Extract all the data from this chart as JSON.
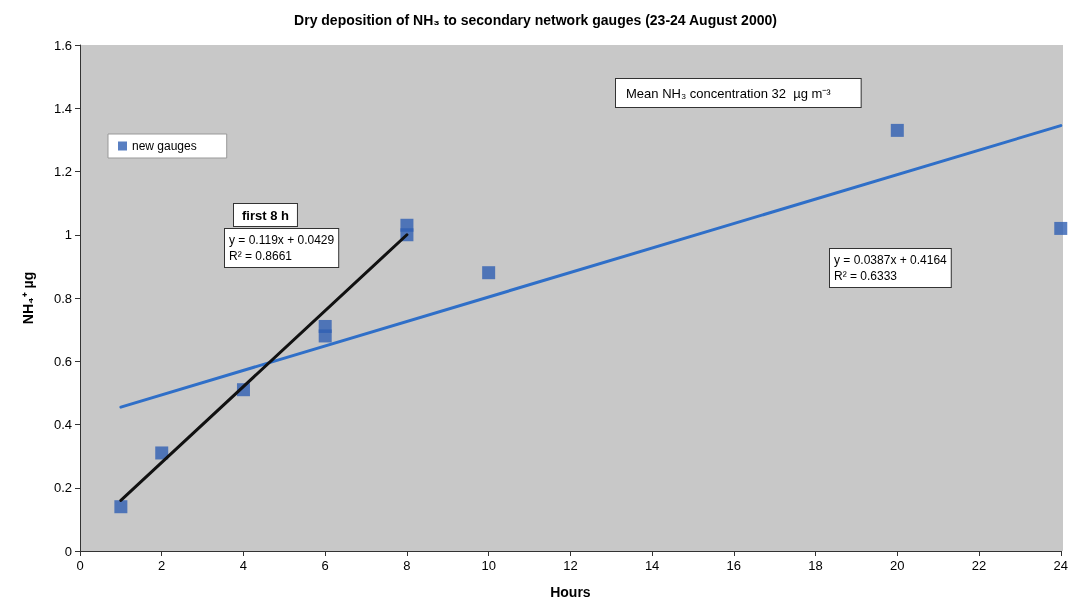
{
  "chart_data": {
    "type": "scatter",
    "title": "Dry deposition of NH₃ to secondary network gauges (23-24 August 2000)",
    "xlabel": "Hours",
    "ylabel": "NH₄⁺ µg",
    "series": [
      {
        "name": "new gauges",
        "marker": "square",
        "color": "#2f5fb3",
        "x": [
          1,
          2,
          4,
          6,
          6,
          8,
          8,
          10,
          20,
          24
        ],
        "values": [
          0.14,
          0.31,
          0.51,
          0.71,
          0.68,
          1.03,
          1.0,
          0.88,
          1.33,
          1.02
        ]
      },
      {
        "type": "line",
        "marker": "none",
        "color": "#2f6fc8",
        "x": [
          1,
          24
        ],
        "values": [
          0.455,
          1.345
        ]
      },
      {
        "type": "line",
        "marker": "none",
        "color": "#111111",
        "x": [
          1,
          8
        ],
        "values": [
          0.16,
          1.0
        ]
      }
    ],
    "xlim": [
      0,
      24
    ],
    "xticks": [
      0,
      2,
      4,
      6,
      8,
      10,
      12,
      14,
      16,
      18,
      20,
      22,
      24
    ],
    "ylim": [
      0,
      1.6
    ],
    "yticks": [
      0,
      0.2,
      0.4,
      0.6,
      0.8,
      1,
      1.2,
      1.4,
      1.6
    ],
    "annotations": [
      "Mean NH₃ concentration 32  µg m⁻³",
      "first 8 h",
      "y = 0.119x + 0.0429\nR² = 0.8661",
      "y = 0.0387x + 0.4164\nR² = 0.6333"
    ],
    "legend": "top left",
    "grid": false,
    "line_style": "solid"
  }
}
